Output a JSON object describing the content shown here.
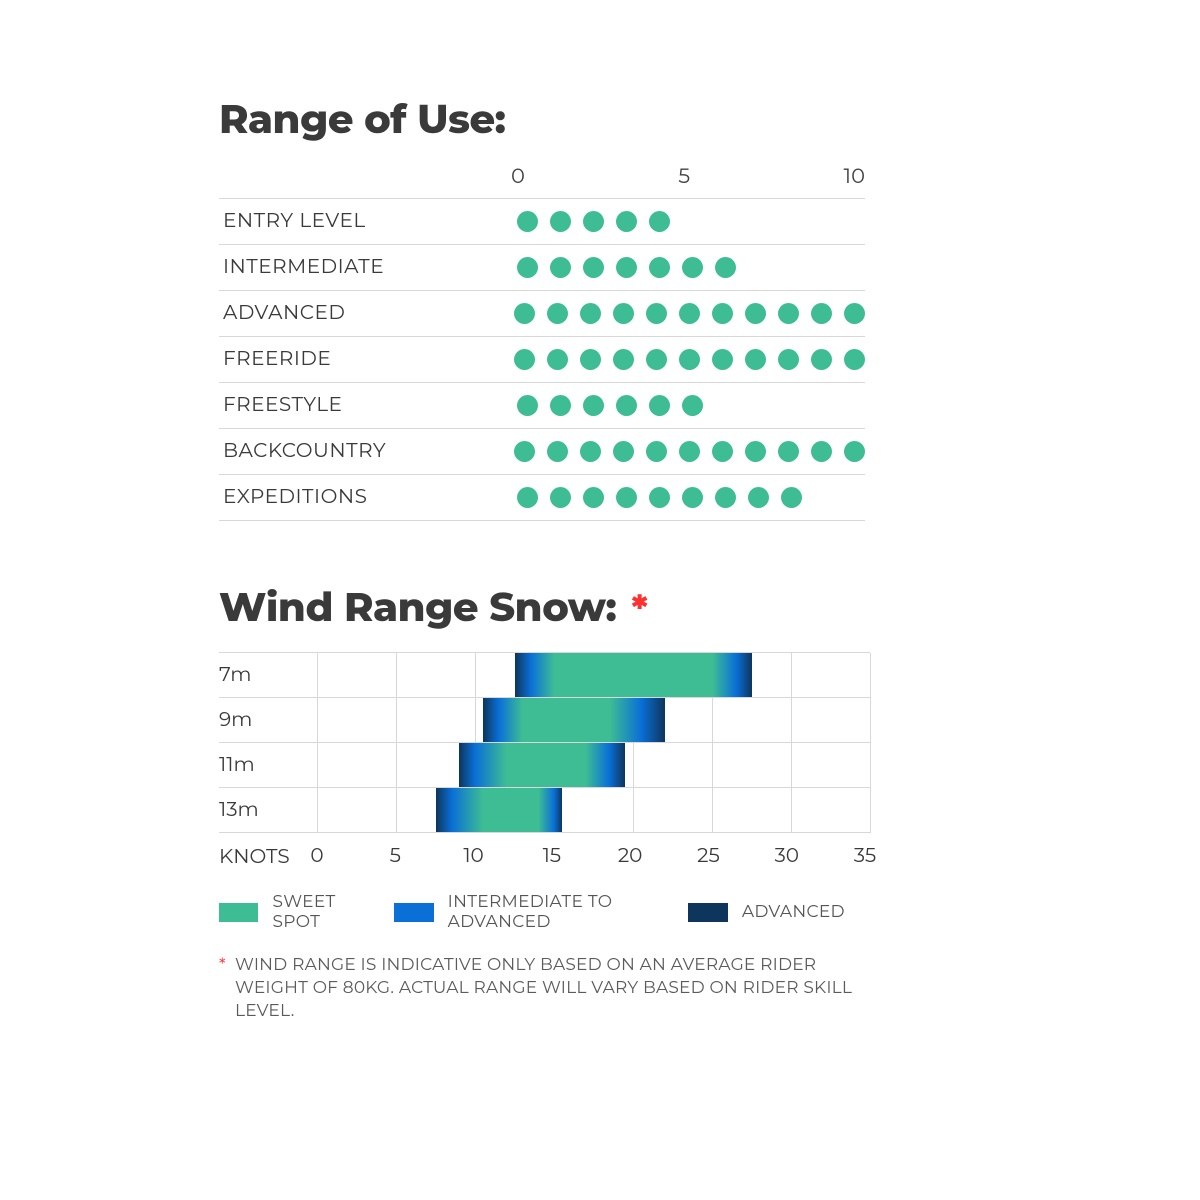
{
  "colors": {
    "dot": "#3ebd94",
    "sweet": "#3ebd94",
    "inter": "#0a6fd7",
    "adv": "#0e355c",
    "text": "#3a3a3a",
    "ast": "#ff3030"
  },
  "range_of_use": {
    "title": "Range of Use:",
    "scale_labels": [
      "0",
      "5",
      "10"
    ],
    "max_dots": 11,
    "rows": [
      {
        "label": "ENTRY LEVEL",
        "value": 5
      },
      {
        "label": "INTERMEDIATE",
        "value": 7
      },
      {
        "label": "ADVANCED",
        "value": 11
      },
      {
        "label": "FREERIDE",
        "value": 11
      },
      {
        "label": "FREESTYLE",
        "value": 6
      },
      {
        "label": "BACKCOUNTRY",
        "value": 11
      },
      {
        "label": "EXPEDITIONS",
        "value": 9
      }
    ]
  },
  "wind_range": {
    "title": "Wind Range Snow:",
    "asterisk": "*",
    "x_unit_label": "KNOTS",
    "x_min": 0,
    "x_max": 35,
    "x_ticks": [
      0,
      5,
      10,
      15,
      20,
      25,
      30,
      35
    ],
    "rows": [
      {
        "label": "7m",
        "adv_lo": 12.5,
        "int_lo": 13.5,
        "sweet_lo": 15.0,
        "sweet_hi": 25.0,
        "int_hi": 26.5,
        "adv_hi": 27.5
      },
      {
        "label": "9m",
        "adv_lo": 10.5,
        "int_lo": 11.5,
        "sweet_lo": 13.0,
        "sweet_hi": 18.5,
        "int_hi": 20.5,
        "adv_hi": 22.0
      },
      {
        "label": "11m",
        "adv_lo": 9.0,
        "int_lo": 10.0,
        "sweet_lo": 12.0,
        "sweet_hi": 17.0,
        "int_hi": 18.5,
        "adv_hi": 19.5
      },
      {
        "label": "13m",
        "adv_lo": 7.5,
        "int_lo": 8.5,
        "sweet_lo": 10.5,
        "sweet_hi": 14.0,
        "int_hi": 15.0,
        "adv_hi": 15.5
      }
    ],
    "legend": [
      {
        "label": "SWEET SPOT",
        "color_key": "sweet"
      },
      {
        "label": "INTERMEDIATE TO ADVANCED",
        "color_key": "inter"
      },
      {
        "label": "ADVANCED",
        "color_key": "adv"
      }
    ],
    "footnote": "WIND RANGE IS INDICATIVE ONLY BASED ON AN AVERAGE RIDER WEIGHT OF 80KG. ACTUAL RANGE WILL VARY BASED ON RIDER SKILL LEVEL."
  }
}
